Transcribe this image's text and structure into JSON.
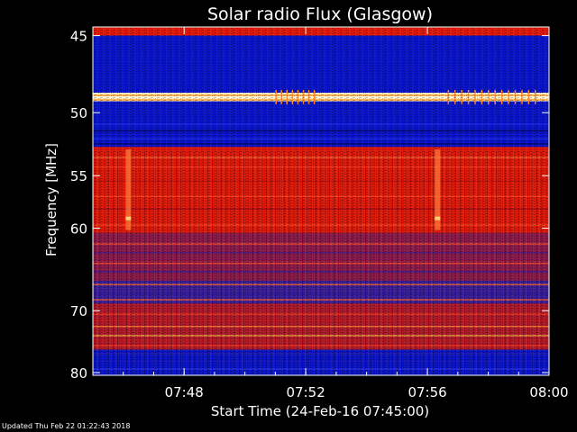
{
  "chart_data": {
    "type": "heatmap",
    "title": "Solar radio Flux (Glasgow)",
    "xlabel": "Start Time (24-Feb-16 07:45:00)",
    "ylabel": "Frequency [MHz]",
    "x_ticks": [
      "07:48",
      "07:52",
      "07:56",
      "08:00"
    ],
    "y_ticks": [
      "45",
      "50",
      "55",
      "60",
      "70",
      "80"
    ],
    "x_range": [
      "07:45",
      "08:00"
    ],
    "y_range_mhz": [
      44.5,
      80.5
    ],
    "y_scale": "reciprocal",
    "bands": [
      {
        "from_mhz": 44.5,
        "to_mhz": 45.0,
        "intensity": "high"
      },
      {
        "from_mhz": 45.0,
        "to_mhz": 48.6,
        "intensity": "low"
      },
      {
        "from_mhz": 48.6,
        "to_mhz": 49.2,
        "intensity": "saturated"
      },
      {
        "from_mhz": 49.2,
        "to_mhz": 52.6,
        "intensity": "low"
      },
      {
        "from_mhz": 52.6,
        "to_mhz": 53.0,
        "intensity": "high"
      },
      {
        "from_mhz": 53.0,
        "to_mhz": 60.5,
        "intensity": "high"
      },
      {
        "from_mhz": 60.5,
        "to_mhz": 66.0,
        "intensity": "medium"
      },
      {
        "from_mhz": 66.0,
        "to_mhz": 69.0,
        "intensity": "low-medium"
      },
      {
        "from_mhz": 69.0,
        "to_mhz": 76.0,
        "intensity": "medium-high"
      },
      {
        "from_mhz": 76.0,
        "to_mhz": 80.5,
        "intensity": "low"
      }
    ],
    "vertical_streaks": [
      "07:46:10",
      "07:56:20"
    ],
    "colors": {
      "low": "#0a14c8",
      "medium": "#8c1a4a",
      "high": "#e01a0a",
      "saturated": "#fff8d0",
      "background": "#000000",
      "text": "#ffffff"
    }
  },
  "footer": "Updated Thu Feb 22 01:22:43 2018"
}
